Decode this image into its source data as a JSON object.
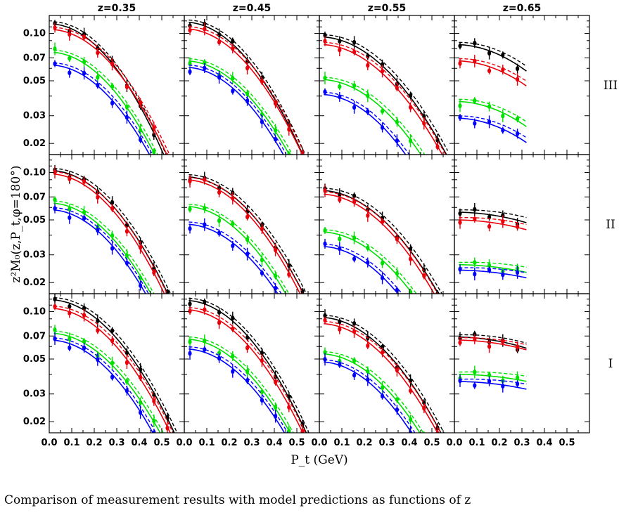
{
  "chart_data": {
    "type": "scatter",
    "columns": [
      {
        "label": "z=0.35",
        "xmax_data": 0.55
      },
      {
        "label": "z=0.45",
        "xmax_data": 0.55
      },
      {
        "label": "z=0.55",
        "xmax_data": 0.55
      },
      {
        "label": "z=0.65",
        "xmax_data": 0.3
      }
    ],
    "rows": [
      "III",
      "II",
      "I"
    ],
    "xlabel": "P_t (GeV)",
    "ylabel": "z²M₀(z,P_t,φ=180°)",
    "xlim": [
      0.0,
      0.6
    ],
    "ylim": [
      0.017,
      0.13
    ],
    "yscale": "log",
    "xticks": [
      "0.0",
      "0.1",
      "0.2",
      "0.3",
      "0.4",
      "0.5"
    ],
    "yticks": [
      0.02,
      0.03,
      0.05,
      0.07,
      0.1
    ],
    "ytick_labels": [
      "0.02",
      "0.03",
      "0.05",
      "0.07",
      "0.10"
    ],
    "series_colors": {
      "black": "#000000",
      "red": "#e8000b",
      "green": "#00e000",
      "blue": "#0000ff"
    },
    "series_order": [
      "black",
      "red",
      "green",
      "blue"
    ],
    "x_points": [
      0.025,
      0.09,
      0.155,
      0.215,
      0.28,
      0.345,
      0.405,
      0.465,
      0.525
    ],
    "panels": [
      [
        {
          "black": {
            "a": 0.115,
            "k": 7.4
          },
          "red": {
            "a": 0.106,
            "k": 6.7
          },
          "green": {
            "a": 0.076,
            "k": 6.8
          },
          "blue": {
            "a": 0.063,
            "k": 6.6
          }
        },
        {
          "black": {
            "a": 0.118,
            "k": 7.0
          },
          "red": {
            "a": 0.107,
            "k": 6.7
          },
          "green": {
            "a": 0.067,
            "k": 6.3
          },
          "blue": {
            "a": 0.061,
            "k": 6.6
          }
        },
        {
          "black": {
            "a": 0.095,
            "k": 5.4
          },
          "red": {
            "a": 0.085,
            "k": 5.4
          },
          "green": {
            "a": 0.051,
            "k": 5.4
          },
          "blue": {
            "a": 0.041,
            "k": 6.0
          }
        },
        {
          "black": {
            "a": 0.085,
            "k": 3.8
          },
          "red": {
            "a": 0.067,
            "k": 3.6
          },
          "green": {
            "a": 0.037,
            "k": 3.6
          },
          "blue": {
            "a": 0.029,
            "k": 3.5
          }
        }
      ],
      [
        {
          "black": {
            "a": 0.103,
            "k": 6.5
          },
          "red": {
            "a": 0.098,
            "k": 6.7
          },
          "green": {
            "a": 0.064,
            "k": 6.5
          },
          "blue": {
            "a": 0.058,
            "k": 6.7
          }
        },
        {
          "black": {
            "a": 0.094,
            "k": 6.1
          },
          "red": {
            "a": 0.09,
            "k": 6.3
          },
          "green": {
            "a": 0.061,
            "k": 6.3
          },
          "blue": {
            "a": 0.047,
            "k": 5.9
          }
        },
        {
          "black": {
            "a": 0.077,
            "k": 5.4
          },
          "red": {
            "a": 0.073,
            "k": 5.6
          },
          "green": {
            "a": 0.042,
            "k": 5.3
          },
          "blue": {
            "a": 0.034,
            "k": 5.7
          }
        },
        {
          "black": {
            "a": 0.056,
            "k": 1.5
          },
          "red": {
            "a": 0.05,
            "k": 1.4
          },
          "green": {
            "a": 0.026,
            "k": 1.1
          },
          "blue": {
            "a": 0.024,
            "k": 1.1
          }
        }
      ],
      [
        {
          "black": {
            "a": 0.119,
            "k": 6.3
          },
          "red": {
            "a": 0.105,
            "k": 6.3
          },
          "green": {
            "a": 0.073,
            "k": 6.0
          },
          "blue": {
            "a": 0.066,
            "k": 6.4
          }
        },
        {
          "black": {
            "a": 0.118,
            "k": 6.6
          },
          "red": {
            "a": 0.103,
            "k": 6.5
          },
          "green": {
            "a": 0.067,
            "k": 6.2
          },
          "blue": {
            "a": 0.058,
            "k": 6.2
          }
        },
        {
          "black": {
            "a": 0.092,
            "k": 5.8
          },
          "red": {
            "a": 0.084,
            "k": 5.8
          },
          "green": {
            "a": 0.054,
            "k": 5.8
          },
          "blue": {
            "a": 0.048,
            "k": 6.2
          }
        },
        {
          "black": {
            "a": 0.069,
            "k": 1.6
          },
          "red": {
            "a": 0.066,
            "k": 1.4
          },
          "green": {
            "a": 0.04,
            "k": 1.0
          },
          "blue": {
            "a": 0.036,
            "k": 1.1
          }
        }
      ]
    ]
  },
  "caption": "Comparison of measurement results with model predictions as functions of z"
}
